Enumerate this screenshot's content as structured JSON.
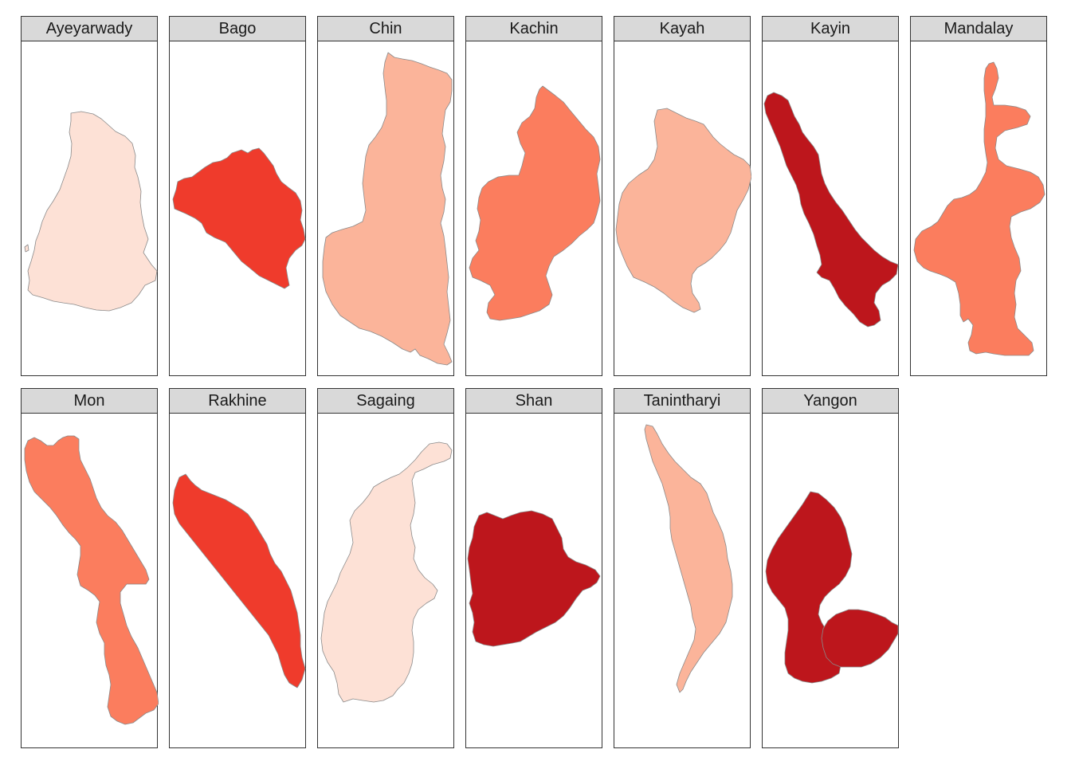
{
  "facets": [
    {
      "label": "Ayeyarwady",
      "fill": "#fde1d6",
      "shape": "ayeyarwady-shape"
    },
    {
      "label": "Bago",
      "fill": "#ef3b2c",
      "shape": "bago-shape"
    },
    {
      "label": "Chin",
      "fill": "#fbb49a",
      "shape": "chin-shape"
    },
    {
      "label": "Kachin",
      "fill": "#fb7d5e",
      "shape": "kachin-shape"
    },
    {
      "label": "Kayah",
      "fill": "#fbb49a",
      "shape": "kayah-shape"
    },
    {
      "label": "Kayin",
      "fill": "#bd161c",
      "shape": "kayin-shape"
    },
    {
      "label": "Mandalay",
      "fill": "#fb7d5e",
      "shape": "mandalay-shape"
    },
    {
      "label": "Mon",
      "fill": "#fb7d5e",
      "shape": "mon-shape"
    },
    {
      "label": "Rakhine",
      "fill": "#ef3b2c",
      "shape": "rakhine-shape"
    },
    {
      "label": "Sagaing",
      "fill": "#fde1d6",
      "shape": "sagaing-shape"
    },
    {
      "label": "Shan",
      "fill": "#bd161c",
      "shape": "shan-shape"
    },
    {
      "label": "Tanintharyi",
      "fill": "#fbb49a",
      "shape": "tanintharyi-shape"
    },
    {
      "label": "Yangon",
      "fill": "#bd161c",
      "shape": "yangon-shape"
    }
  ]
}
